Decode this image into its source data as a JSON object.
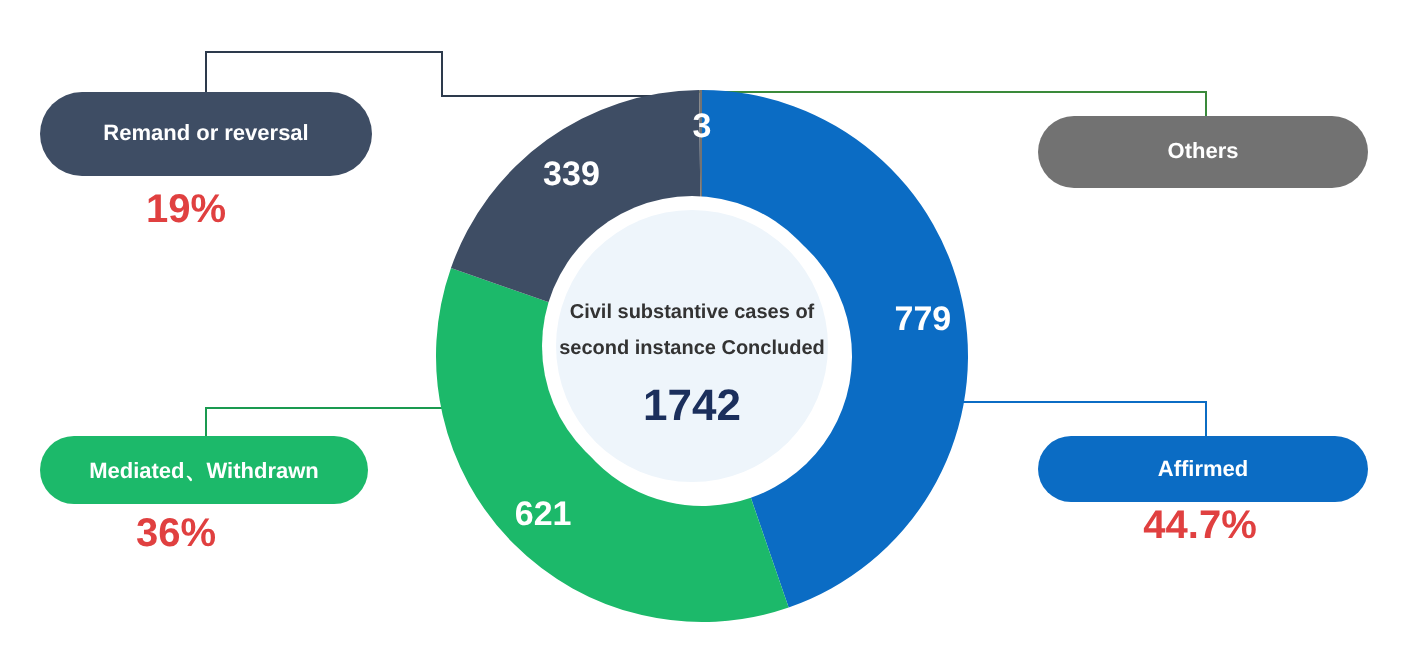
{
  "chart_data": {
    "type": "donut",
    "title": "Civil substantive cases of second instance Concluded",
    "categories": [
      "Affirmed",
      "Mediated、Withdrawn",
      "Remand or reversal",
      "Others"
    ],
    "values": [
      779,
      621,
      339,
      3
    ],
    "colors": [
      "#0b6cc4",
      "#1cb96a",
      "#3e4d64",
      "#727272"
    ],
    "data_labels": true,
    "annotations": [
      "1742",
      "44.7%",
      "36%",
      "19%"
    ]
  }
}
